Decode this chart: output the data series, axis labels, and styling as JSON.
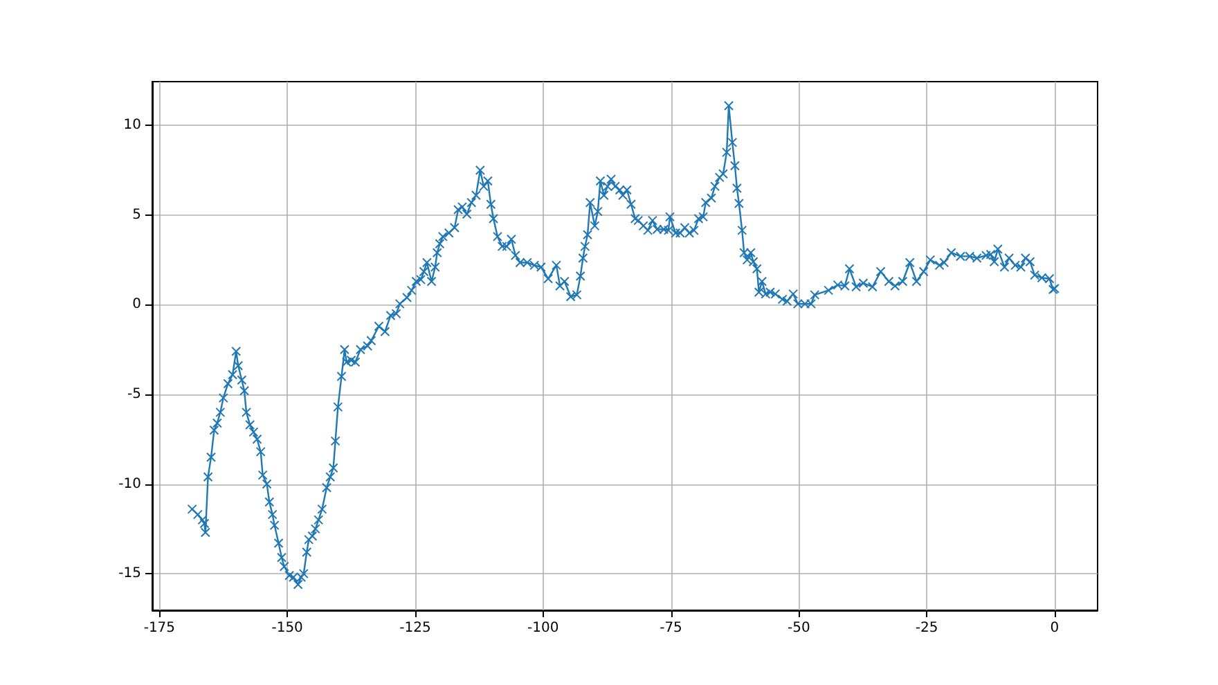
{
  "chart_data": {
    "type": "line",
    "xlim": [
      -176.4,
      8.4
    ],
    "ylim": [
      -17.04,
      12.44
    ],
    "xticks": [
      -175,
      -150,
      -125,
      -100,
      -75,
      -50,
      -25,
      0
    ],
    "yticks": [
      -15,
      -10,
      -5,
      0,
      5,
      10
    ],
    "grid": true,
    "marker": "cross",
    "line_style": "solid",
    "series": [
      {
        "color": "#1f77b4",
        "x": [
          -168.6,
          -167.5,
          -166.6,
          -166.2,
          -166,
          -165.5,
          -164.9,
          -164.3,
          -163.7,
          -163.1,
          -162.5,
          -161.6,
          -160.7,
          -160,
          -159.6,
          -158.9,
          -158.4,
          -158,
          -157.3,
          -156.6,
          -155.9,
          -155.2,
          -154.8,
          -154,
          -153.5,
          -152.9,
          -152.5,
          -151.7,
          -151.1,
          -150.6,
          -149.6,
          -148.8,
          -147.9,
          -147.3,
          -146.8,
          -146.2,
          -145.8,
          -145.1,
          -144.5,
          -143.9,
          -143.2,
          -142.3,
          -141.6,
          -141,
          -140.6,
          -140.1,
          -139.4,
          -138.8,
          -138.4,
          -137.5,
          -136.7,
          -135.7,
          -134.3,
          -133.6,
          -132.1,
          -130.9,
          -129.8,
          -128.7,
          -128,
          -126.6,
          -125.7,
          -124.8,
          -123.9,
          -123.3,
          -122.7,
          -121.8,
          -121.1,
          -120.7,
          -120.2,
          -119.6,
          -118.4,
          -117.3,
          -116.6,
          -115.8,
          -114.9,
          -114,
          -113.1,
          -112.3,
          -111.6,
          -110.8,
          -110.2,
          -109.7,
          -108.9,
          -108,
          -107.1,
          -106.2,
          -105.4,
          -104.5,
          -103.1,
          -101.7,
          -100.4,
          -99,
          -97.4,
          -96.7,
          -95.8,
          -94.6,
          -93.4,
          -92.7,
          -92.2,
          -91.8,
          -91.3,
          -90.8,
          -89.9,
          -89.3,
          -88.8,
          -88.1,
          -87.4,
          -86.7,
          -85.9,
          -85,
          -84.4,
          -83.6,
          -82.8,
          -82,
          -81.4,
          -80.4,
          -79.5,
          -78.6,
          -77.7,
          -76.4,
          -75.5,
          -75.2,
          -74.1,
          -73.2,
          -72.3,
          -71.4,
          -70.5,
          -69.6,
          -68.7,
          -68.2,
          -67.1,
          -66.4,
          -65.5,
          -64.8,
          -64.1,
          -63.7,
          -63,
          -62.5,
          -62.1,
          -61.7,
          -61.1,
          -60.7,
          -60.1,
          -59.4,
          -58.9,
          -58.2,
          -57.8,
          -57.2,
          -56.5,
          -55.6,
          -54.6,
          -53.2,
          -52.3,
          -51.1,
          -50.2,
          -48.8,
          -47.6,
          -46.9,
          -44.2,
          -42.4,
          -41,
          -40.1,
          -38.8,
          -37.4,
          -35.6,
          -34,
          -32.4,
          -31.2,
          -29.7,
          -28.3,
          -27,
          -25.6,
          -24.3,
          -22.5,
          -21.6,
          -20.2,
          -18.4,
          -16.6,
          -15.2,
          -13.4,
          -12.5,
          -11.8,
          -11.1,
          -9.8,
          -8.9,
          -7.7,
          -6.6,
          -5.7,
          -4.8,
          -3.9,
          -2.5,
          -1,
          -0.3,
          0
        ],
        "values": [
          -11.4,
          -11.7,
          -12,
          -12.2,
          -12.7,
          -9.6,
          -8.5,
          -7,
          -6.6,
          -6,
          -5.2,
          -4.4,
          -3.9,
          -2.6,
          -3.4,
          -4.2,
          -4.8,
          -6,
          -6.7,
          -7.1,
          -7.5,
          -8.2,
          -9.5,
          -10,
          -11,
          -11.7,
          -12.3,
          -13.3,
          -14.1,
          -14.6,
          -15.1,
          -15.2,
          -15.6,
          -15.2,
          -15,
          -13.8,
          -13.1,
          -12.9,
          -12.5,
          -12,
          -11.4,
          -10.2,
          -9.6,
          -9.1,
          -7.6,
          -5.7,
          -4,
          -2.5,
          -3.2,
          -3.1,
          -3.2,
          -2.5,
          -2.3,
          -2,
          -1.2,
          -1.5,
          -0.6,
          -0.5,
          0.05,
          0.4,
          0.8,
          1.3,
          1.4,
          1.85,
          2.35,
          1.3,
          2.1,
          2.9,
          3.4,
          3.8,
          4,
          4.3,
          5.3,
          5.45,
          5.05,
          5.7,
          6.1,
          7.5,
          6.6,
          6.9,
          5.6,
          4.8,
          3.8,
          3.25,
          3.25,
          3.65,
          2.75,
          2.35,
          2.35,
          2.2,
          2.1,
          1.45,
          2.2,
          1.05,
          1.3,
          0.45,
          0.55,
          1.6,
          2.6,
          3.25,
          3.9,
          5.7,
          4.4,
          5.2,
          6.9,
          6.1,
          6.6,
          7,
          6.6,
          6.4,
          6.1,
          6.4,
          5.6,
          4.8,
          4.7,
          4.4,
          4.15,
          4.7,
          4.2,
          4.2,
          4.15,
          4.9,
          4,
          4,
          4.3,
          4,
          4.15,
          4.8,
          4.9,
          5.7,
          5.95,
          6.6,
          7.1,
          7.3,
          8.5,
          11.1,
          9.05,
          7.75,
          6.5,
          5.65,
          4.15,
          2.9,
          2.5,
          2.9,
          2.4,
          2,
          0.7,
          1.3,
          0.6,
          0.7,
          0.6,
          0.3,
          0.2,
          0.6,
          0.05,
          0.05,
          0.05,
          0.55,
          0.8,
          1.1,
          1.05,
          2,
          1,
          1.2,
          1,
          1.85,
          1.3,
          1.05,
          1.3,
          2.35,
          1.3,
          1.85,
          2.5,
          2.2,
          2.35,
          2.9,
          2.7,
          2.7,
          2.6,
          2.75,
          2.8,
          2.4,
          3.1,
          2.1,
          2.6,
          2.2,
          2.1,
          2.6,
          2.4,
          1.65,
          1.5,
          1.45,
          0.85,
          0.9
        ]
      }
    ]
  }
}
